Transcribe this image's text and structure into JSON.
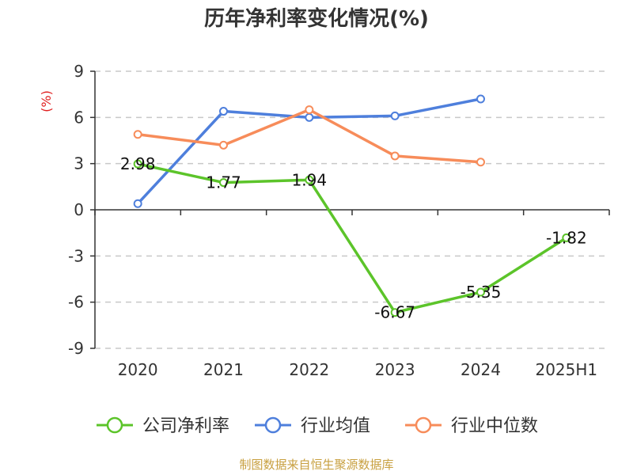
{
  "chart_data": {
    "type": "line",
    "title": "历年净利率变化情况(%)",
    "ylabel": "(%)",
    "categories": [
      "2020",
      "2021",
      "2022",
      "2023",
      "2024",
      "2025H1"
    ],
    "ylim": [
      -9,
      9
    ],
    "yticks": [
      9,
      6,
      3,
      0,
      -3,
      -6,
      -9
    ],
    "grid": "horizontal-dashed",
    "legend_position": "bottom",
    "series": [
      {
        "name": "公司净利率",
        "color": "#5cc42a",
        "values": [
          2.98,
          1.77,
          1.94,
          -6.67,
          -5.35,
          -1.82
        ],
        "labels": [
          "2.98",
          "1.77",
          "1.94",
          "-6.67",
          "-5.35",
          "-1.82"
        ]
      },
      {
        "name": "行业均值",
        "color": "#4e7fdc",
        "values": [
          0.4,
          6.4,
          6.0,
          6.1,
          7.2,
          null
        ]
      },
      {
        "name": "行业中位数",
        "color": "#f78c5a",
        "values": [
          4.9,
          4.2,
          6.5,
          3.5,
          3.1,
          null
        ]
      }
    ]
  },
  "source": "制图数据来自恒生聚源数据库"
}
